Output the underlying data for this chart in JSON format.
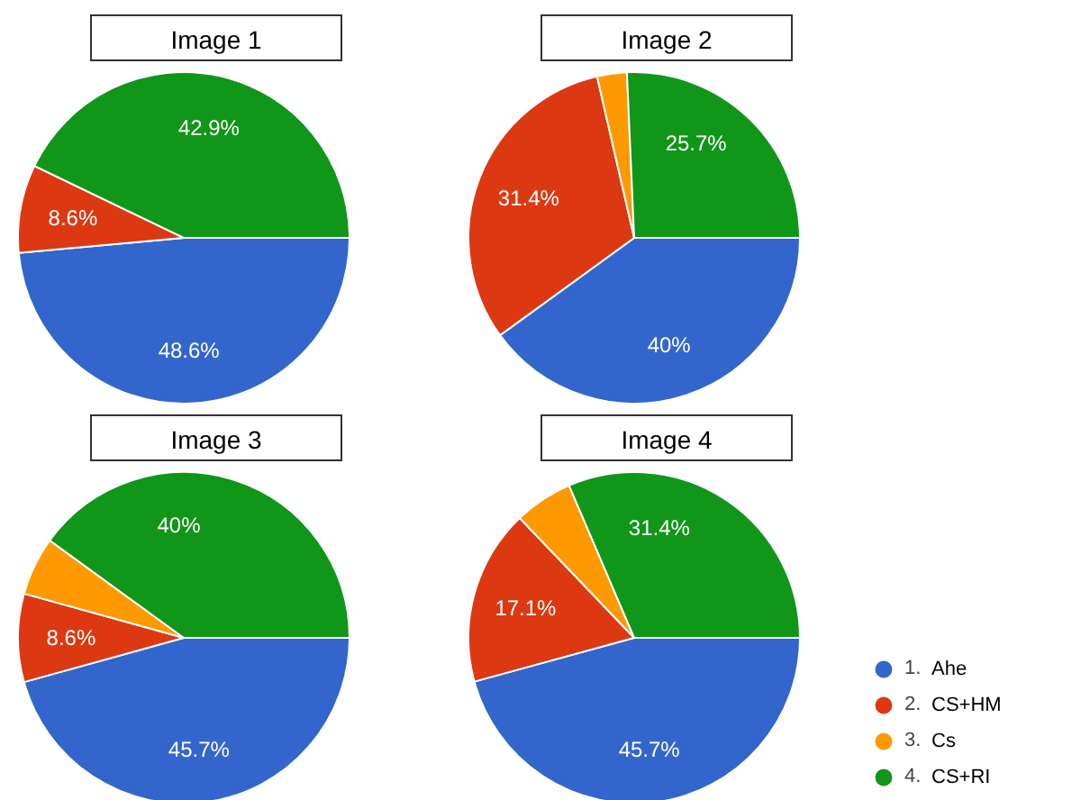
{
  "chart_data": [
    {
      "type": "pie",
      "title": "Image 1",
      "categories": [
        null,
        null,
        null
      ],
      "values": [
        48.6,
        8.6,
        42.9
      ],
      "colors": [
        "#3366cc",
        "#dc3912",
        "#109618"
      ],
      "value_labels": [
        "48.6%",
        "8.6%",
        "42.9%"
      ],
      "legend": false
    },
    {
      "type": "pie",
      "title": "Image 2",
      "categories": [
        null,
        null,
        null,
        null
      ],
      "values": [
        40,
        31.4,
        2.9,
        25.7
      ],
      "colors": [
        "#3366cc",
        "#dc3912",
        "#ff9900",
        "#109618"
      ],
      "value_labels": [
        "40%",
        "31.4%",
        null,
        "25.7%"
      ],
      "legend": false
    },
    {
      "type": "pie",
      "title": "Image 3",
      "categories": [
        null,
        null,
        null,
        null
      ],
      "values": [
        45.7,
        8.6,
        5.7,
        40
      ],
      "colors": [
        "#3366cc",
        "#dc3912",
        "#ff9900",
        "#109618"
      ],
      "value_labels": [
        "45.7%",
        "8.6%",
        null,
        "40%"
      ],
      "legend": false
    },
    {
      "type": "pie",
      "title": "Image 4",
      "categories": [
        "Ahe",
        "CS+HM",
        "Cs",
        "CS+RI"
      ],
      "values": [
        45.7,
        17.1,
        5.7,
        31.4
      ],
      "colors": [
        "#3366cc",
        "#dc3912",
        "#ff9900",
        "#109618"
      ],
      "value_labels": [
        "45.7%",
        "17.1%",
        null,
        "31.4%"
      ],
      "legend": "bottom right",
      "annotations": [
        "1.",
        "2.",
        "3.",
        "4."
      ]
    }
  ]
}
